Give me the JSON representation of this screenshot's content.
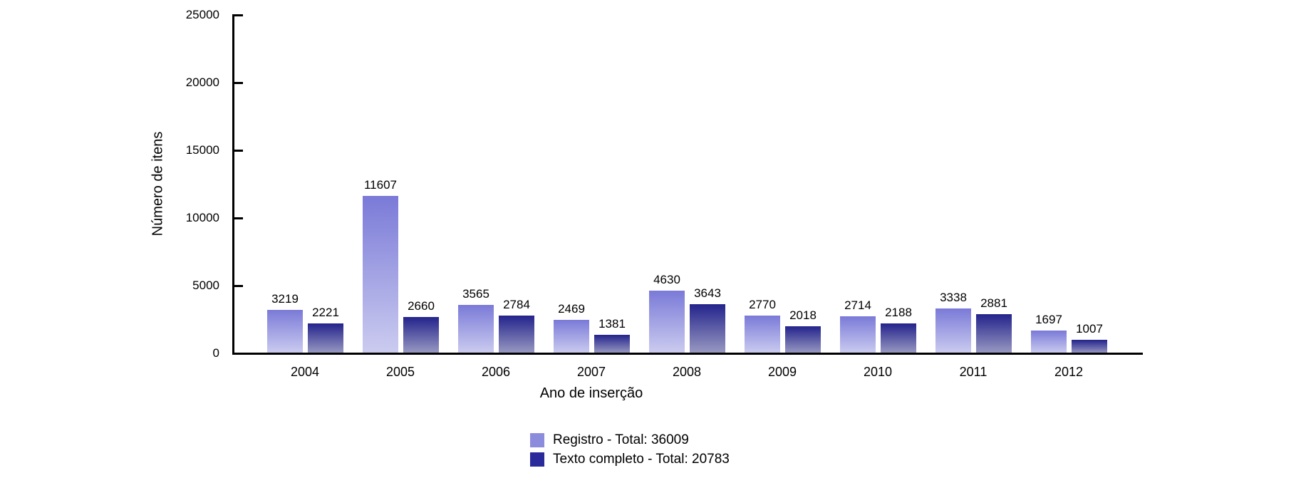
{
  "chart_data": {
    "type": "bar",
    "title": "",
    "xlabel": "Ano de inserção",
    "ylabel": "Número de itens",
    "categories": [
      "2004",
      "2005",
      "2006",
      "2007",
      "2008",
      "2009",
      "2010",
      "2011",
      "2012"
    ],
    "series": [
      {
        "name": "Registro",
        "legend_label": "Registro - Total: 36009",
        "total": 36009,
        "values": [
          3219,
          11607,
          3565,
          2469,
          4630,
          2770,
          2714,
          3338,
          1697
        ],
        "color_top": "#7a7ad8",
        "color_bottom": "#ccccf0",
        "legend_color": "#8c8cdc"
      },
      {
        "name": "Texto completo",
        "legend_label": "Texto completo - Total: 20783",
        "total": 20783,
        "values": [
          2221,
          2660,
          2784,
          1381,
          3643,
          2018,
          2188,
          2881,
          1007
        ],
        "color_top": "#23238c",
        "color_bottom": "#9a9ac2",
        "legend_color": "#2a2a9a"
      }
    ],
    "ylim": [
      0,
      25000
    ],
    "yticks": [
      0,
      5000,
      10000,
      15000,
      20000,
      25000
    ],
    "grid": false,
    "bar_value_labels": true,
    "legend_position": "bottom-center",
    "axis_color": "#000000",
    "background_color": "#ffffff"
  }
}
